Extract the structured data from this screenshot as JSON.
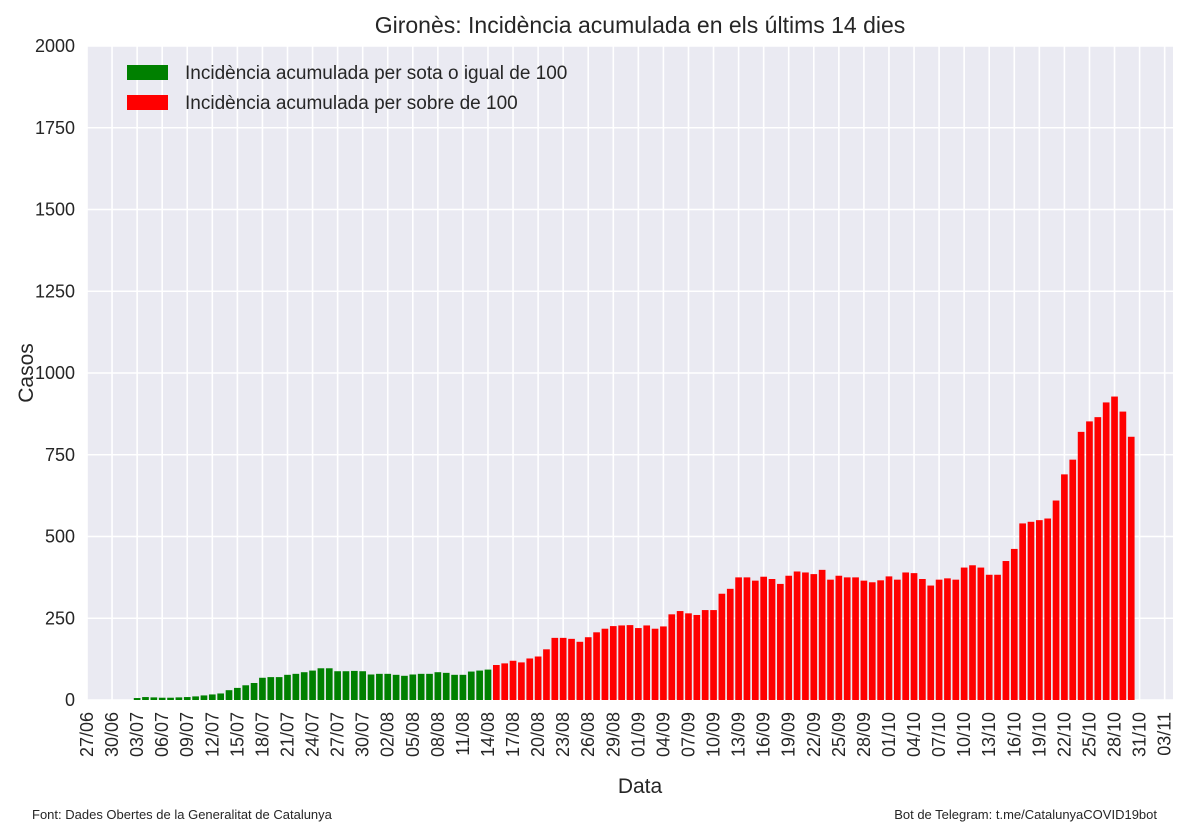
{
  "chart_data": {
    "type": "bar",
    "title": "Gironès: Incidència acumulada en els últims 14 dies",
    "xlabel": "Data",
    "ylabel": "Casos",
    "ylim": [
      0,
      2000
    ],
    "yticks": [
      0,
      250,
      500,
      750,
      1000,
      1250,
      1500,
      1750,
      2000
    ],
    "grid": true,
    "legend_position": "top-left",
    "threshold": 100,
    "x_start": "2020-06-27",
    "x_end": "2020-11-04",
    "xtick_labels": [
      "27/06",
      "30/06",
      "03/07",
      "06/07",
      "09/07",
      "12/07",
      "15/07",
      "18/07",
      "21/07",
      "24/07",
      "27/07",
      "30/07",
      "02/08",
      "05/08",
      "08/08",
      "11/08",
      "14/08",
      "17/08",
      "20/08",
      "23/08",
      "26/08",
      "29/08",
      "01/09",
      "04/09",
      "07/09",
      "10/09",
      "13/09",
      "16/09",
      "19/09",
      "22/09",
      "25/09",
      "28/09",
      "01/10",
      "04/10",
      "07/10",
      "10/10",
      "13/10",
      "16/10",
      "19/10",
      "22/10",
      "25/10",
      "28/10",
      "31/10",
      "03/11"
    ],
    "first_bar_date": "2020-07-03",
    "series": [
      {
        "name": "Incidència acumulada per sota o igual de 100",
        "color": "#008000"
      },
      {
        "name": "Incidència acumulada per sobre de 100",
        "color": "#ff0000"
      }
    ],
    "values": [
      6,
      9,
      8,
      7,
      7,
      8,
      9,
      11,
      14,
      17,
      20,
      30,
      37,
      45,
      52,
      68,
      70,
      70,
      77,
      80,
      85,
      90,
      97,
      97,
      88,
      88,
      89,
      88,
      78,
      80,
      80,
      77,
      74,
      78,
      80,
      80,
      85,
      83,
      77,
      77,
      87,
      90,
      93,
      107,
      112,
      120,
      115,
      127,
      133,
      155,
      190,
      190,
      187,
      178,
      192,
      207,
      218,
      226,
      228,
      229,
      220,
      228,
      218,
      225,
      262,
      272,
      265,
      260,
      275,
      275,
      325,
      340,
      375,
      375,
      365,
      377,
      370,
      355,
      380,
      393,
      390,
      385,
      398,
      368,
      380,
      375,
      375,
      365,
      360,
      366,
      378,
      368,
      390,
      388,
      370,
      350,
      368,
      372,
      368,
      405,
      412,
      405,
      383,
      383,
      425,
      462,
      540,
      545,
      550,
      555,
      610,
      690,
      735,
      820,
      852,
      865,
      910,
      928,
      882,
      805
    ]
  },
  "footer": {
    "left": "Font: Dades Obertes de la Generalitat de Catalunya",
    "right": "Bot de Telegram: t.me/CatalunyaCOVID19bot"
  }
}
